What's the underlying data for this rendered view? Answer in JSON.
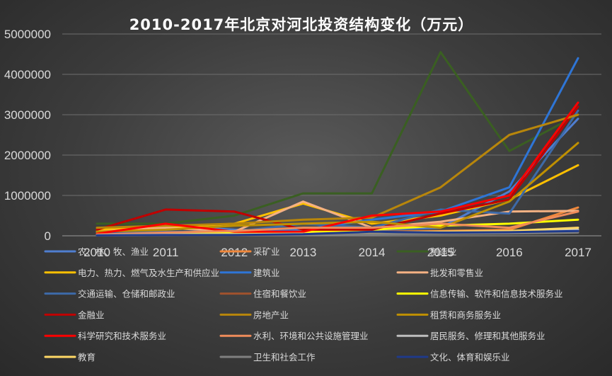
{
  "chart_data": {
    "type": "line",
    "title": "2010-2017年北京对河北投资结构变化（万元）",
    "categories": [
      "2010",
      "2011",
      "2012",
      "2013",
      "2014",
      "2015",
      "2016",
      "2017"
    ],
    "ylim": [
      0,
      5000000
    ],
    "yticks": [
      "5000000",
      "4000000",
      "3000000",
      "2000000",
      "1000000",
      "0"
    ],
    "ytick_values": [
      5000000,
      4000000,
      3000000,
      2000000,
      1000000,
      0
    ],
    "grid": true,
    "legend_position": "bottom",
    "series": [
      {
        "name": "农、林、牧、渔业",
        "color": "#4f7ed0",
        "values": [
          80000,
          250000,
          150000,
          100000,
          150000,
          200000,
          1100000,
          2900000
        ]
      },
      {
        "name": "采矿业",
        "color": "#f0883c",
        "values": [
          30000,
          50000,
          60000,
          80000,
          100000,
          120000,
          150000,
          700000
        ]
      },
      {
        "name": "制造业",
        "color": "#3a5f22",
        "values": [
          300000,
          300000,
          500000,
          1050000,
          1050000,
          4550000,
          2100000,
          3000000
        ]
      },
      {
        "name": "电力、热力、燃气及水生产和供应业",
        "color": "#ffc000",
        "values": [
          150000,
          200000,
          300000,
          800000,
          300000,
          500000,
          900000,
          1750000
        ]
      },
      {
        "name": "建筑业",
        "color": "#2e75d6",
        "values": [
          40000,
          80000,
          100000,
          150000,
          400000,
          600000,
          1200000,
          4400000
        ]
      },
      {
        "name": "批发和零售业",
        "color": "#f4b183",
        "values": [
          100000,
          200000,
          100000,
          850000,
          200000,
          350000,
          600000,
          620000
        ]
      },
      {
        "name": "交通运输、仓储和邮政业",
        "color": "#3d6aa8",
        "values": [
          50000,
          100000,
          100000,
          300000,
          200000,
          650000,
          550000,
          3100000
        ]
      },
      {
        "name": "住宿和餐饮业",
        "color": "#a0522d",
        "values": [
          10000,
          20000,
          30000,
          40000,
          50000,
          60000,
          80000,
          100000
        ]
      },
      {
        "name": "信息传输、软件和信息技术服务业",
        "color": "#ffff00",
        "values": [
          20000,
          50000,
          80000,
          100000,
          150000,
          250000,
          300000,
          400000
        ]
      },
      {
        "name": "金融业",
        "color": "#c00000",
        "values": [
          150000,
          650000,
          600000,
          150000,
          150000,
          550000,
          900000,
          3200000
        ]
      },
      {
        "name": "房地产业",
        "color": "#b8860b",
        "values": [
          200000,
          250000,
          300000,
          400000,
          450000,
          1200000,
          2500000,
          3000000
        ]
      },
      {
        "name": "租赁和商务服务业",
        "color": "#bf9000",
        "values": [
          100000,
          150000,
          250000,
          300000,
          350000,
          200000,
          850000,
          2300000
        ]
      },
      {
        "name": "科学研究和技术服务业",
        "color": "#ff0000",
        "values": [
          50000,
          300000,
          100000,
          100000,
          500000,
          600000,
          1000000,
          3300000
        ]
      },
      {
        "name": "水利、环境和公共设施管理业",
        "color": "#f08c5a",
        "values": [
          30000,
          80000,
          120000,
          200000,
          200000,
          300000,
          200000,
          600000
        ]
      },
      {
        "name": "居民服务、修理和其他服务业",
        "color": "#bfbfbf",
        "values": [
          20000,
          30000,
          40000,
          50000,
          60000,
          70000,
          100000,
          150000
        ]
      },
      {
        "name": "教育",
        "color": "#ffd966",
        "values": [
          10000,
          20000,
          30000,
          50000,
          80000,
          100000,
          120000,
          200000
        ]
      },
      {
        "name": "卫生和社会工作",
        "color": "#808080",
        "values": [
          10000,
          15000,
          20000,
          30000,
          40000,
          50000,
          60000,
          80000
        ]
      },
      {
        "name": "文化、体育和娱乐业",
        "color": "#1f3a8a",
        "values": [
          10000,
          20000,
          20000,
          40000,
          100000,
          80000,
          90000,
          120000
        ]
      }
    ]
  }
}
